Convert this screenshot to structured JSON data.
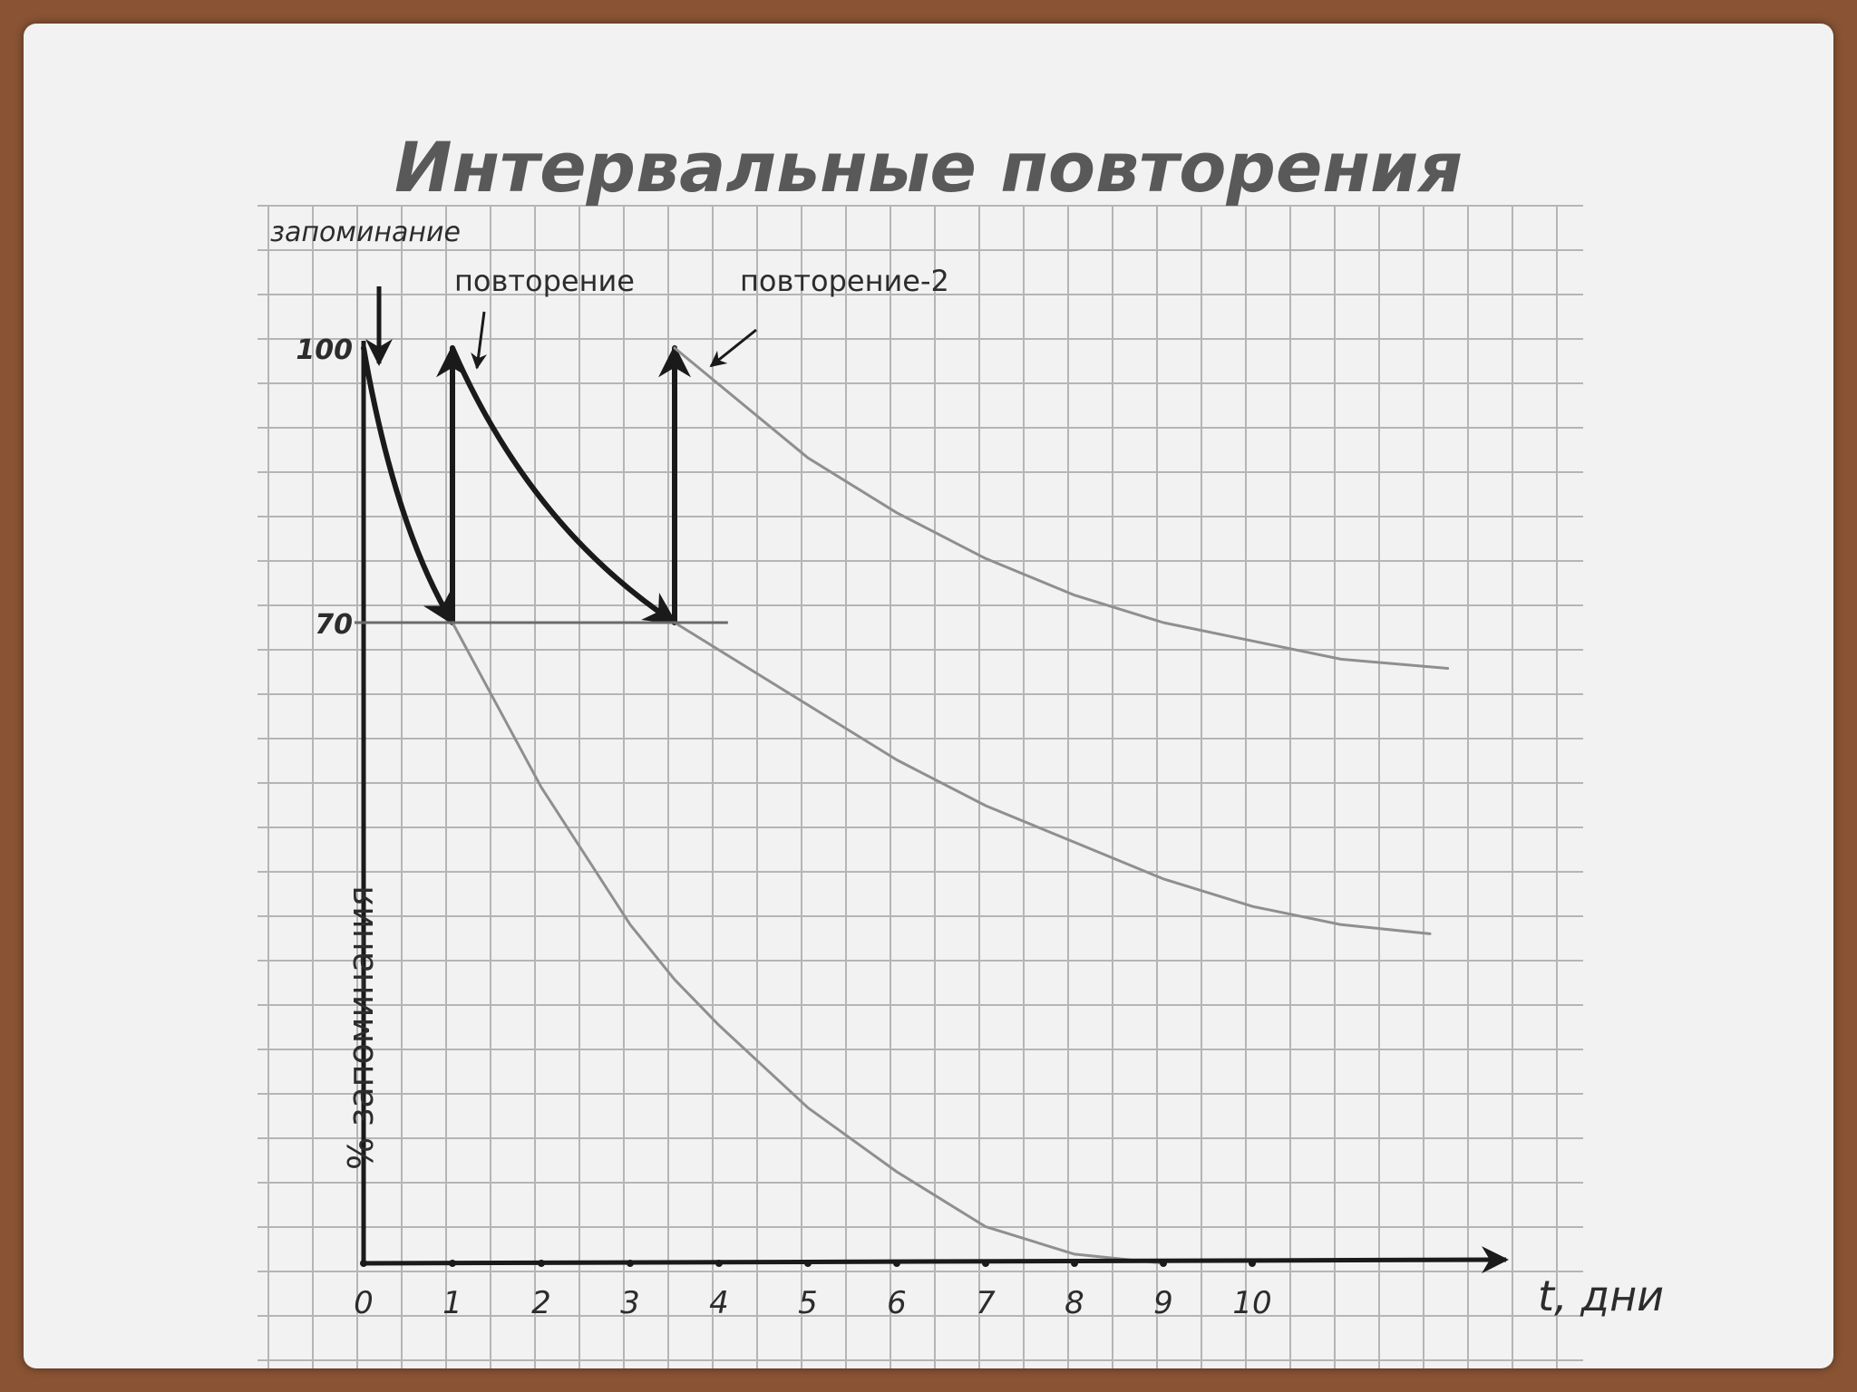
{
  "chart_data": {
    "type": "line",
    "title": "Интервальные повторения",
    "xlabel": "t, дни",
    "ylabel": "% запоминания",
    "x_ticks": [
      "0",
      "1",
      "2",
      "3",
      "4",
      "5",
      "6",
      "7",
      "8",
      "9",
      "10"
    ],
    "y_ticks": [
      "70",
      "100"
    ],
    "annotations": [
      "запоминание",
      "повторение",
      "повторение-2"
    ],
    "xlim": [
      0,
      12.5
    ],
    "ylim": [
      0,
      100
    ],
    "grid": true,
    "series": [
      {
        "x": [
          0,
          1
        ],
        "y": [
          100,
          70
        ],
        "style": "bold-arrow"
      },
      {
        "x": [
          1,
          1
        ],
        "y": [
          70,
          100
        ],
        "style": "bold-arrow"
      },
      {
        "x": [
          1,
          3.5
        ],
        "y": [
          100,
          70
        ],
        "style": "bold-arrow"
      },
      {
        "x": [
          3.5,
          3.5
        ],
        "y": [
          70,
          100
        ],
        "style": "bold-arrow"
      },
      {
        "x": [
          1,
          2,
          3,
          3.5,
          4,
          5,
          6,
          7,
          8,
          9
        ],
        "y": [
          70,
          52,
          37,
          31,
          26,
          17,
          10,
          4,
          1,
          0
        ],
        "style": "thin"
      },
      {
        "x": [
          3.5,
          5,
          6,
          7,
          8,
          9,
          10,
          11,
          12
        ],
        "y": [
          70,
          61,
          55,
          50,
          46,
          42,
          39,
          37,
          36
        ],
        "style": "thin"
      },
      {
        "x": [
          3.5,
          5,
          6,
          7,
          8,
          9,
          10,
          11,
          12.2
        ],
        "y": [
          100,
          88,
          82,
          77,
          73,
          70,
          68,
          66,
          65
        ],
        "style": "thin"
      }
    ],
    "colors": {
      "bold": "#1a1a1a",
      "thin": "#8f8f8f",
      "grid": "#b5b5b5",
      "title": "#595959"
    }
  }
}
